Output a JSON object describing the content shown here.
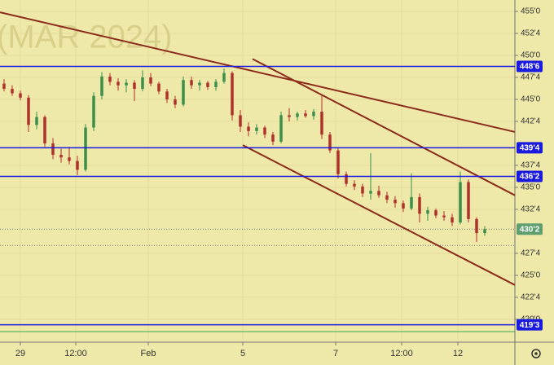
{
  "chart_data": {
    "type": "candlestick",
    "watermark": "(MAR 2024)",
    "x": [
      0,
      1,
      2,
      3,
      4,
      5,
      6,
      7,
      8,
      9,
      10,
      11,
      12,
      13,
      14,
      15,
      16,
      17,
      18,
      19,
      20,
      21,
      22,
      23,
      24,
      25,
      26,
      27,
      28,
      29,
      30,
      31,
      32,
      33,
      34,
      35,
      36,
      37,
      38,
      39,
      40,
      41,
      42,
      43,
      44,
      45,
      46,
      47,
      48,
      49,
      50,
      51,
      52,
      53,
      54,
      55,
      56,
      57,
      58,
      59
    ],
    "open": [
      446.8,
      446.2,
      445.7,
      445.2,
      442.1,
      443.0,
      440.0,
      438.7,
      438.4,
      438.0,
      437.0,
      441.8,
      445.4,
      447.6,
      447.0,
      446.6,
      446.9,
      446.2,
      447.5,
      446.8,
      445.9,
      445.0,
      444.4,
      447.2,
      446.6,
      446.9,
      446.4,
      447.0,
      448.0,
      443.2,
      441.9,
      441.4,
      441.8,
      441.0,
      440.2,
      443.2,
      443.0,
      443.4,
      443.1,
      443.6,
      441.0,
      439.2,
      436.5,
      435.4,
      435.1,
      434.3,
      434.6,
      434.1,
      433.6,
      433.2,
      432.6,
      433.9,
      432.0,
      432.4,
      431.8,
      431.6,
      431.0,
      435.6,
      431.4,
      429.8
    ],
    "high": [
      447.3,
      446.6,
      446.0,
      445.5,
      443.6,
      443.2,
      440.6,
      439.4,
      439.6,
      438.6,
      442.2,
      445.8,
      448.1,
      448.0,
      447.4,
      447.3,
      447.2,
      448.3,
      448.0,
      447.0,
      446.2,
      445.4,
      447.6,
      447.6,
      447.2,
      447.1,
      447.3,
      448.5,
      448.2,
      443.8,
      442.4,
      442.2,
      442.0,
      441.3,
      443.6,
      444.0,
      443.6,
      443.8,
      443.9,
      445.5,
      441.3,
      439.5,
      436.8,
      435.8,
      435.4,
      438.9,
      435.2,
      434.5,
      434.0,
      433.5,
      436.6,
      434.3,
      432.8,
      432.6,
      432.3,
      432.0,
      436.8,
      435.9,
      431.6,
      430.6
    ],
    "low": [
      445.9,
      445.4,
      444.9,
      441.3,
      441.6,
      439.6,
      438.2,
      437.8,
      437.6,
      436.4,
      436.8,
      441.4,
      445.0,
      446.6,
      446.0,
      445.8,
      444.8,
      445.9,
      446.5,
      445.6,
      444.6,
      444.0,
      444.2,
      446.2,
      446.0,
      446.1,
      446.0,
      446.8,
      442.6,
      441.3,
      440.8,
      441.0,
      440.6,
      439.8,
      440.0,
      442.5,
      442.6,
      442.9,
      442.7,
      440.5,
      438.9,
      436.0,
      435.1,
      434.7,
      433.9,
      433.6,
      433.8,
      433.2,
      432.7,
      432.2,
      432.4,
      431.0,
      431.2,
      431.5,
      431.2,
      430.6,
      430.8,
      431.0,
      428.8,
      429.5
    ],
    "close": [
      446.2,
      445.7,
      445.2,
      442.1,
      443.0,
      440.0,
      438.7,
      438.4,
      438.0,
      437.0,
      441.8,
      445.4,
      447.6,
      447.0,
      446.6,
      446.9,
      446.2,
      447.5,
      446.8,
      445.9,
      445.0,
      444.4,
      447.2,
      446.6,
      446.9,
      446.4,
      447.0,
      448.0,
      443.2,
      441.9,
      441.4,
      441.8,
      441.0,
      440.2,
      443.2,
      443.0,
      443.4,
      443.1,
      443.6,
      441.0,
      439.2,
      436.5,
      435.4,
      435.1,
      434.3,
      434.6,
      434.1,
      433.6,
      433.2,
      432.6,
      433.9,
      432.0,
      432.4,
      431.8,
      431.6,
      431.0,
      435.6,
      431.4,
      429.8,
      430.25
    ],
    "up_color": "#3a8f4a",
    "down_color": "#b0302a",
    "xlim": [
      -0.5,
      62.7
    ],
    "ylim": [
      417.4,
      456.3
    ],
    "xticks": [
      {
        "value": 2,
        "label": "29"
      },
      {
        "value": 8.8,
        "label": "12:00"
      },
      {
        "value": 17.7,
        "label": "Feb"
      },
      {
        "value": 29.3,
        "label": "5"
      },
      {
        "value": 40.7,
        "label": "7"
      },
      {
        "value": 48.8,
        "label": "12:00"
      },
      {
        "value": 55.7,
        "label": "12"
      }
    ],
    "yticks": [
      {
        "value": 455,
        "label": "455'0"
      },
      {
        "value": 452.5,
        "label": "452'4"
      },
      {
        "value": 450,
        "label": "450'0"
      },
      {
        "value": 447.5,
        "label": "447'4"
      },
      {
        "value": 445,
        "label": "445'0"
      },
      {
        "value": 442.5,
        "label": "442'4"
      },
      {
        "value": 437.5,
        "label": "437'4"
      },
      {
        "value": 435,
        "label": "435'0"
      },
      {
        "value": 432.5,
        "label": "432'4"
      },
      {
        "value": 427.5,
        "label": "427'4"
      },
      {
        "value": 425,
        "label": "425'0"
      },
      {
        "value": 422.5,
        "label": "422'4"
      },
      {
        "value": 420,
        "label": "420'0"
      }
    ],
    "grid": true,
    "levels": [
      {
        "value": 448.75,
        "label": "448'6"
      },
      {
        "value": 439.5,
        "label": "439'4"
      },
      {
        "value": 436.25,
        "label": "436'2"
      },
      {
        "value": 419.375,
        "label": "419'3"
      }
    ],
    "level_color": "#1a1adf",
    "last_price": {
      "value": 430.25,
      "label": "430'2",
      "color": "#5f9e6e"
    },
    "dotted_levels": [
      430.25,
      428.4
    ],
    "green_level": 418.6,
    "trend_color": "#8b2a1a",
    "trend_lines": [
      {
        "x": [
          -0.5,
          62.7
        ],
        "y": [
          454.9,
          441.3
        ]
      },
      {
        "x": [
          30.5,
          62.7
        ],
        "y": [
          449.6,
          434.1
        ]
      },
      {
        "x": [
          29.3,
          62.7
        ],
        "y": [
          439.8,
          423.9
        ]
      }
    ]
  }
}
